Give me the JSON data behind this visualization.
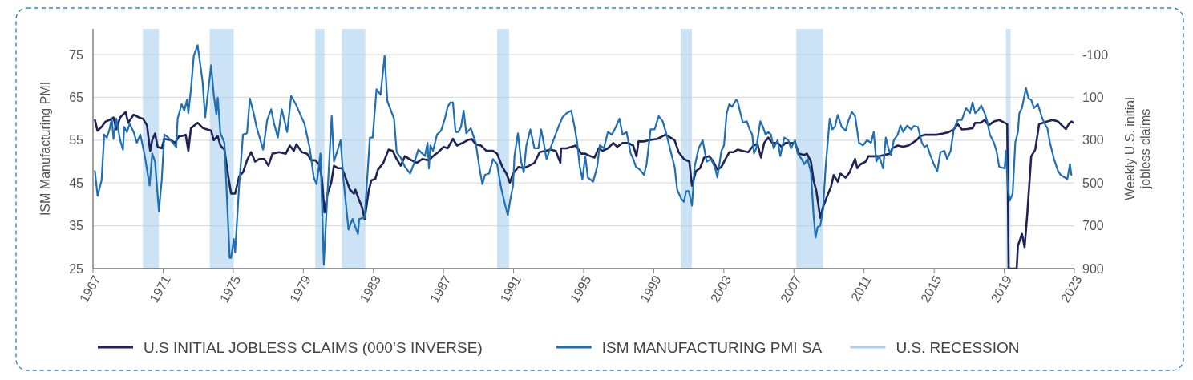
{
  "chart_data": {
    "type": "line",
    "ylabel": "ISM Manufacturing PMI",
    "y2label": "Weekly U.S. initial jobless claims",
    "xlim": [
      1967,
      2023
    ],
    "xticks": [
      1967,
      1971,
      1975,
      1979,
      1983,
      1987,
      1991,
      1995,
      1999,
      2003,
      2007,
      2011,
      2015,
      2019,
      2023
    ],
    "ylim": [
      25,
      81
    ],
    "yticks": [
      25,
      35,
      45,
      55,
      65,
      75
    ],
    "y2lim": [
      900,
      -220
    ],
    "y2ticks": [
      -100,
      100,
      300,
      500,
      700,
      900
    ],
    "grid": "y",
    "legend": "bottom",
    "bands": [
      {
        "axis": "x",
        "from": 1969.85,
        "to": 1970.76,
        "label": "U.S. RECESSION",
        "color": "#a9d0ef"
      },
      {
        "axis": "x",
        "from": 1973.66,
        "to": 1975.03,
        "color": "#a9d0ef"
      },
      {
        "axis": "x",
        "from": 1979.68,
        "to": 1980.21,
        "color": "#a9d0ef"
      },
      {
        "axis": "x",
        "from": 1981.2,
        "to": 1982.54,
        "color": "#a9d0ef"
      },
      {
        "axis": "x",
        "from": 1990.06,
        "to": 1990.74,
        "color": "#a9d0ef"
      },
      {
        "axis": "x",
        "from": 2000.54,
        "to": 2001.18,
        "color": "#a9d0ef"
      },
      {
        "axis": "x",
        "from": 2007.13,
        "to": 2008.66,
        "color": "#a9d0ef"
      },
      {
        "axis": "x",
        "from": 2019.1,
        "to": 2019.36,
        "color": "#a9d0ef"
      }
    ],
    "series": [
      {
        "name": "U.S INITIAL JOBLESS CLAIMS (000’S INVERSE)",
        "color": "#1f2356",
        "axis": "y2",
        "x": [
          1967.11,
          1967.26,
          1967.49,
          1967.72,
          1967.94,
          1968.17,
          1968.33,
          1968.55,
          1968.86,
          1969.01,
          1969.32,
          1969.62,
          1969.85,
          1970.08,
          1970.26,
          1970.38,
          1970.54,
          1970.69,
          1970.92,
          1971.07,
          1971.45,
          1971.68,
          1971.91,
          1972.06,
          1972.29,
          1972.44,
          1972.59,
          1972.97,
          1973.28,
          1973.74,
          1973.89,
          1974.12,
          1974.27,
          1974.5,
          1974.73,
          1974.88,
          1975.11,
          1975.34,
          1975.56,
          1975.79,
          1976.02,
          1976.25,
          1976.48,
          1976.78,
          1977.01,
          1977.24,
          1977.62,
          1978.0,
          1978.23,
          1978.46,
          1978.61,
          1978.92,
          1979.22,
          1979.45,
          1979.68,
          1979.91,
          1980.06,
          1980.21,
          1980.37,
          1980.59,
          1980.75,
          1980.98,
          1981.2,
          1981.36,
          1981.66,
          1981.89,
          1981.97,
          1982.19,
          1982.35,
          1982.5,
          1982.73,
          1982.88,
          1983.11,
          1983.26,
          1983.57,
          1983.87,
          1984.1,
          1984.33,
          1984.56,
          1984.8,
          1985.18,
          1985.48,
          1985.79,
          1986.17,
          1986.4,
          1986.7,
          1987.01,
          1987.24,
          1987.54,
          1987.77,
          1988.08,
          1988.38,
          1988.61,
          1988.84,
          1989.14,
          1989.45,
          1989.83,
          1990.06,
          1990.36,
          1990.59,
          1990.79,
          1990.97,
          1991.28,
          1991.58,
          1991.89,
          1992.19,
          1992.49,
          1992.8,
          1993.1,
          1993.41,
          1993.67,
          1993.71,
          1994.02,
          1994.32,
          1994.55,
          1994.86,
          1995.09,
          1995.39,
          1995.62,
          1995.85,
          1996.08,
          1996.38,
          1996.69,
          1996.91,
          1997.22,
          1997.52,
          1997.83,
          1998.01,
          1998.13,
          1998.44,
          1998.74,
          1999.2,
          1999.66,
          1999.96,
          2000.19,
          2000.42,
          2000.72,
          2001.03,
          2001.18,
          2001.41,
          2001.64,
          2001.87,
          2002.17,
          2002.4,
          2002.63,
          2002.86,
          2003.09,
          2003.31,
          2003.54,
          2003.78,
          2004.08,
          2004.39,
          2004.69,
          2004.92,
          2005.12,
          2005.3,
          2005.53,
          2005.76,
          2006.07,
          2006.29,
          2006.52,
          2006.83,
          2007.06,
          2007.29,
          2007.59,
          2007.74,
          2007.97,
          2008.12,
          2008.28,
          2008.5,
          2008.66,
          2008.89,
          2009.11,
          2009.27,
          2009.5,
          2009.65,
          2009.95,
          2010.18,
          2010.33,
          2010.49,
          2010.61,
          2010.79,
          2011.1,
          2011.25,
          2011.55,
          2011.86,
          2012.16,
          2012.47,
          2012.62,
          2012.92,
          2013.23,
          2013.53,
          2013.76,
          2013.99,
          2014.22,
          2014.45,
          2014.75,
          2015.13,
          2015.51,
          2015.82,
          2016.12,
          2016.35,
          2016.58,
          2016.89,
          2017.19,
          2017.34,
          2017.65,
          2017.88,
          2018.11,
          2018.41,
          2018.71,
          2019.02,
          2019.17,
          2019.25,
          2019.71,
          2019.78,
          2020.01,
          2020.16,
          2020.31,
          2020.54,
          2020.77,
          2020.99,
          2021.22,
          2021.46,
          2021.76,
          2022.07,
          2022.29,
          2022.52,
          2022.68,
          2022.83,
          2022.95
        ],
        "values": [
          206,
          256,
          238,
          213,
          206,
          194,
          250,
          194,
          169,
          219,
          181,
          194,
          200,
          231,
          350,
          300,
          269,
          331,
          338,
          294,
          300,
          313,
          281,
          281,
          275,
          350,
          244,
          219,
          244,
          256,
          300,
          281,
          325,
          344,
          475,
          550,
          550,
          469,
          450,
          394,
          356,
          400,
          388,
          388,
          419,
          363,
          356,
          363,
          325,
          350,
          319,
          356,
          363,
          394,
          394,
          413,
          475,
          638,
          556,
          500,
          419,
          431,
          431,
          463,
          531,
          550,
          531,
          581,
          613,
          669,
          538,
          488,
          481,
          438,
          406,
          344,
          350,
          388,
          419,
          375,
          394,
          406,
          388,
          394,
          375,
          356,
          331,
          338,
          294,
          325,
          313,
          300,
          294,
          319,
          325,
          350,
          350,
          363,
          425,
          456,
          498,
          456,
          425,
          431,
          419,
          406,
          356,
          350,
          344,
          350,
          406,
          338,
          338,
          331,
          325,
          363,
          363,
          375,
          381,
          338,
          350,
          338,
          313,
          331,
          313,
          313,
          325,
          375,
          306,
          306,
          300,
          294,
          275,
          288,
          300,
          356,
          388,
          400,
          513,
          444,
          431,
          381,
          375,
          400,
          438,
          425,
          388,
          356,
          356,
          344,
          350,
          356,
          325,
          319,
          381,
          313,
          288,
          313,
          313,
          331,
          313,
          313,
          313,
          363,
          369,
          363,
          400,
          488,
          538,
          663,
          613,
          563,
          519,
          463,
          494,
          456,
          475,
          450,
          419,
          388,
          431,
          413,
          400,
          375,
          375,
          375,
          369,
          363,
          338,
          325,
          331,
          325,
          313,
          300,
          281,
          275,
          275,
          275,
          269,
          263,
          250,
          225,
          250,
          248,
          244,
          219,
          219,
          206,
          231,
          213,
          206,
          219,
          225,
          900,
          900,
          794,
          738,
          800,
          650,
          375,
          344,
          225,
          219,
          213,
          206,
          213,
          231,
          248,
          225,
          213,
          219
        ]
      },
      {
        "name": "ISM MANUFACTURING PMI SA",
        "color": "#1f6fb5",
        "x": [
          1967.11,
          1967.26,
          1967.49,
          1967.64,
          1967.79,
          1967.94,
          1968.07,
          1968.17,
          1968.33,
          1968.55,
          1968.71,
          1968.78,
          1968.94,
          1969.09,
          1969.32,
          1969.5,
          1969.7,
          1969.93,
          1970.23,
          1970.38,
          1970.54,
          1970.76,
          1970.92,
          1971.07,
          1971.3,
          1971.75,
          1971.83,
          1972.06,
          1972.21,
          1972.36,
          1972.44,
          1972.59,
          1972.75,
          1972.97,
          1973.25,
          1973.4,
          1973.74,
          1973.89,
          1974.04,
          1974.12,
          1974.27,
          1974.5,
          1974.8,
          1974.88,
          1975.03,
          1975.11,
          1975.34,
          1975.56,
          1975.79,
          1975.95,
          1976.17,
          1976.33,
          1976.71,
          1976.94,
          1977.17,
          1977.32,
          1977.55,
          1977.77,
          1978.08,
          1978.31,
          1978.61,
          1978.84,
          1979.07,
          1979.37,
          1979.6,
          1979.76,
          1979.98,
          1980.17,
          1980.37,
          1980.62,
          1980.75,
          1981.13,
          1981.28,
          1981.58,
          1981.81,
          1981.97,
          1982.12,
          1982.19,
          1982.5,
          1982.8,
          1982.96,
          1983.18,
          1983.41,
          1983.64,
          1983.8,
          1983.95,
          1984.18,
          1984.33,
          1984.56,
          1984.8,
          1985.1,
          1985.33,
          1985.56,
          1985.79,
          1985.94,
          1986.09,
          1986.17,
          1986.25,
          1986.4,
          1986.63,
          1986.86,
          1987.08,
          1987.24,
          1987.39,
          1987.54,
          1987.69,
          1987.85,
          1988.0,
          1988.15,
          1988.3,
          1988.56,
          1988.84,
          1989.07,
          1989.22,
          1989.37,
          1989.6,
          1989.83,
          1990.06,
          1990.29,
          1990.51,
          1990.67,
          1990.82,
          1990.97,
          1991.05,
          1991.25,
          1991.43,
          1991.58,
          1991.73,
          1991.96,
          1992.19,
          1992.42,
          1992.57,
          1992.72,
          1992.88,
          1993.1,
          1993.33,
          1993.56,
          1993.79,
          1994.02,
          1994.29,
          1994.48,
          1994.63,
          1994.78,
          1994.93,
          1995.09,
          1995.24,
          1995.54,
          1995.77,
          1995.92,
          1996.15,
          1996.38,
          1996.61,
          1996.84,
          1997.04,
          1997.22,
          1997.45,
          1997.68,
          1997.83,
          1997.98,
          1998.21,
          1998.44,
          1998.59,
          1998.82,
          1999.05,
          1999.28,
          1999.51,
          1999.73,
          1999.96,
          2000.19,
          2000.34,
          2000.57,
          2000.72,
          2000.85,
          2001.0,
          2001.18,
          2001.33,
          2001.56,
          2001.79,
          2002.02,
          2002.25,
          2002.48,
          2002.63,
          2002.86,
          2003.01,
          2003.16,
          2003.31,
          2003.47,
          2003.7,
          2003.78,
          2004.08,
          2004.31,
          2004.47,
          2004.62,
          2004.72,
          2004.85,
          2005.08,
          2005.23,
          2005.38,
          2005.53,
          2005.69,
          2005.84,
          2006.07,
          2006.22,
          2006.45,
          2006.68,
          2006.83,
          2007.06,
          2007.21,
          2007.44,
          2007.59,
          2007.77,
          2007.97,
          2008.12,
          2008.23,
          2008.35,
          2008.5,
          2008.66,
          2008.81,
          2009.04,
          2009.19,
          2009.34,
          2009.5,
          2009.72,
          2009.95,
          2010.1,
          2010.3,
          2010.49,
          2010.71,
          2010.94,
          2011.17,
          2011.4,
          2011.55,
          2011.7,
          2011.86,
          2012.09,
          2012.24,
          2012.39,
          2012.54,
          2012.7,
          2012.92,
          2013.08,
          2013.23,
          2013.46,
          2013.69,
          2013.84,
          2014.07,
          2014.3,
          2014.45,
          2014.6,
          2014.75,
          2014.98,
          2015.18,
          2015.36,
          2015.59,
          2015.74,
          2015.94,
          2016.12,
          2016.35,
          2016.58,
          2016.81,
          2017.04,
          2017.19,
          2017.34,
          2017.5,
          2017.69,
          2017.88,
          2018.03,
          2018.18,
          2018.41,
          2018.56,
          2018.71,
          2019.02,
          2019.1,
          2019.2,
          2019.32,
          2019.48,
          2019.63,
          2019.78,
          2019.86,
          2020.01,
          2020.24,
          2020.39,
          2020.54,
          2020.7,
          2020.92,
          2021.15,
          2021.31,
          2021.46,
          2021.61,
          2021.84,
          2022.07,
          2022.22,
          2022.45,
          2022.6,
          2022.75,
          2022.83
        ],
        "values": [
          47.8,
          42.0,
          45.6,
          56.3,
          55.6,
          57.5,
          60.0,
          55.3,
          60.0,
          55.0,
          52.8,
          58.1,
          56.9,
          58.8,
          56.9,
          54.4,
          56.3,
          51.9,
          44.4,
          51.9,
          50.0,
          38.4,
          45.6,
          56.3,
          55.6,
          53.4,
          60.0,
          63.4,
          61.9,
          64.4,
          61.3,
          66.9,
          74.7,
          77.2,
          68.8,
          60.3,
          72.5,
          65.6,
          61.0,
          64.9,
          56.6,
          54.4,
          27.5,
          27.5,
          31.9,
          28.8,
          44.4,
          56.3,
          56.6,
          64.7,
          61.3,
          58.1,
          52.8,
          59.7,
          62.2,
          59.1,
          55.6,
          62.2,
          56.9,
          65.3,
          63.1,
          60.9,
          58.8,
          53.1,
          46.3,
          44.7,
          51.9,
          25.9,
          41.9,
          60.6,
          50.0,
          55.0,
          46.3,
          34.1,
          36.6,
          34.7,
          33.1,
          36.6,
          36.9,
          55.6,
          55.6,
          66.9,
          65.6,
          74.7,
          64.1,
          62.5,
          60.0,
          52.2,
          50.9,
          48.8,
          47.2,
          49.7,
          52.8,
          51.9,
          51.3,
          54.4,
          48.4,
          53.8,
          52.5,
          56.3,
          57.2,
          60.0,
          62.8,
          63.8,
          63.8,
          56.9,
          56.9,
          58.1,
          61.9,
          56.6,
          57.8,
          54.4,
          48.1,
          44.7,
          46.9,
          47.2,
          50.6,
          49.4,
          43.8,
          40.0,
          37.5,
          41.3,
          44.4,
          51.3,
          56.6,
          50.0,
          47.5,
          53.8,
          57.5,
          53.1,
          53.1,
          57.5,
          54.4,
          50.6,
          53.1,
          55.6,
          58.1,
          60.3,
          61.3,
          61.9,
          58.1,
          54.4,
          48.8,
          45.9,
          51.3,
          46.3,
          45.3,
          48.8,
          53.8,
          53.1,
          56.9,
          56.3,
          58.1,
          60.0,
          56.3,
          56.9,
          51.9,
          50.6,
          48.8,
          48.1,
          46.9,
          49.4,
          57.5,
          57.5,
          60.6,
          59.4,
          56.3,
          52.5,
          48.8,
          43.4,
          41.3,
          40.6,
          43.1,
          43.1,
          39.7,
          48.8,
          53.1,
          55.0,
          50.0,
          50.6,
          48.8,
          46.3,
          52.5,
          53.8,
          61.3,
          63.4,
          62.8,
          64.4,
          64.1,
          59.1,
          59.4,
          57.5,
          56.3,
          51.9,
          53.1,
          59.4,
          58.1,
          56.3,
          56.9,
          56.3,
          53.1,
          55.0,
          51.3,
          55.6,
          55.0,
          53.1,
          55.0,
          51.9,
          50.6,
          49.4,
          50.6,
          47.5,
          37.5,
          32.2,
          34.7,
          35.0,
          38.8,
          48.8,
          60.0,
          57.5,
          58.1,
          60.9,
          58.1,
          57.2,
          59.4,
          61.6,
          60.6,
          54.4,
          53.8,
          55.0,
          54.4,
          56.9,
          50.0,
          51.3,
          48.4,
          55.6,
          53.1,
          51.6,
          55.0,
          56.3,
          58.4,
          56.9,
          58.4,
          57.5,
          58.3,
          58.1,
          54.4,
          53.4,
          53.8,
          51.9,
          49.4,
          47.8,
          52.2,
          52.5,
          50.6,
          52.5,
          57.5,
          59.7,
          59.7,
          62.5,
          61.3,
          63.8,
          61.3,
          61.9,
          63.1,
          61.3,
          59.4,
          56.3,
          54.4,
          52.5,
          48.8,
          48.4,
          52.5,
          43.8,
          40.9,
          42.5,
          54.4,
          56.9,
          61.3,
          62.5,
          67.2,
          64.7,
          64.4,
          62.5,
          63.4,
          60.3,
          58.8,
          57.8,
          54.4,
          50.6,
          47.8,
          46.9,
          46.3,
          45.9,
          49.4,
          46.9
        ]
      }
    ]
  }
}
